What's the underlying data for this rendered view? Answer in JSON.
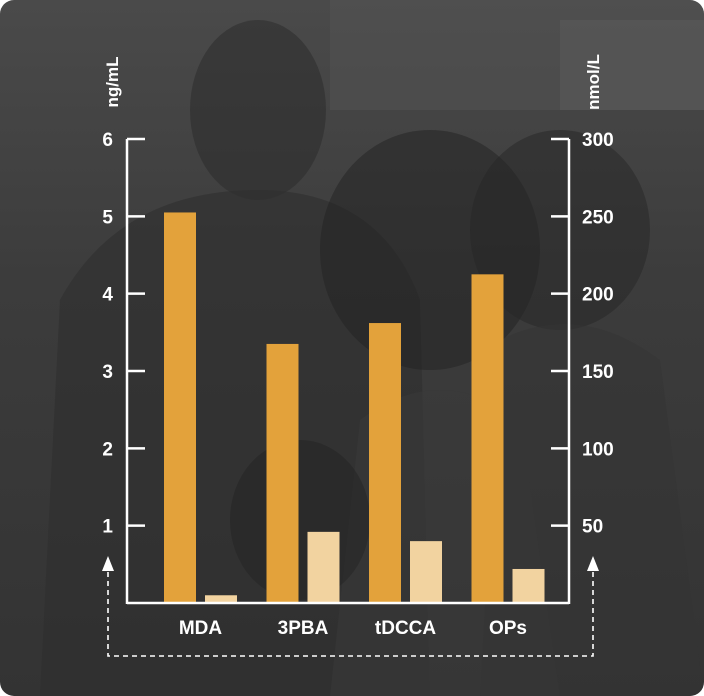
{
  "chart_data": {
    "type": "bar",
    "categories": [
      "MDA",
      "3PBA",
      "tDCCA",
      "OPs"
    ],
    "series": [
      {
        "values": [
          5.05,
          3.35,
          3.62,
          4.25
        ],
        "axis": "left",
        "color": "#E3A23B"
      },
      {
        "values": [
          5,
          46,
          40,
          22
        ],
        "axis": "right",
        "color": "#F2D3A0"
      }
    ],
    "left_axis": {
      "label": "ng/mL",
      "ylim": [
        0,
        6
      ],
      "ticks": [
        1,
        2,
        3,
        4,
        5,
        6
      ]
    },
    "right_axis": {
      "label": "nmol/L",
      "ylim": [
        0,
        300
      ],
      "ticks": [
        50,
        100,
        150,
        200,
        250,
        300
      ]
    },
    "grid": false,
    "legend": "none"
  },
  "colors": {
    "axis": "#ffffff",
    "background": "#3a3a3a"
  }
}
